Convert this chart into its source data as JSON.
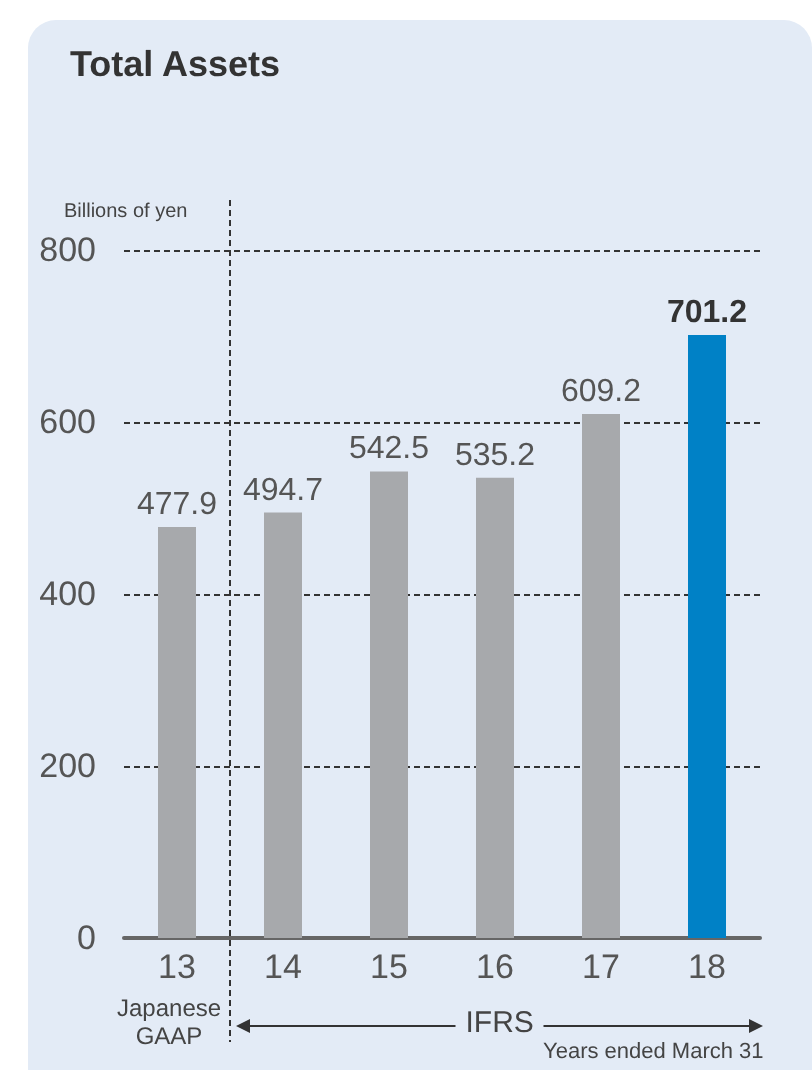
{
  "chart_data": {
    "type": "bar",
    "title": "Total Assets",
    "ylabel": "Billions of yen",
    "categories": [
      "13",
      "14",
      "15",
      "16",
      "17",
      "18"
    ],
    "values": [
      477.9,
      494.7,
      542.5,
      535.2,
      609.2,
      701.2
    ],
    "colors": [
      "#a7a9ac",
      "#a7a9ac",
      "#a7a9ac",
      "#a7a9ac",
      "#a7a9ac",
      "#0081c6"
    ],
    "ylim": [
      0,
      800
    ],
    "yticks": [
      0,
      200,
      400,
      600,
      800
    ],
    "grid": "y",
    "data_labels": true,
    "annotations": [
      "Japanese\nGAAP",
      "IFRS",
      "Years ended March 31"
    ]
  }
}
